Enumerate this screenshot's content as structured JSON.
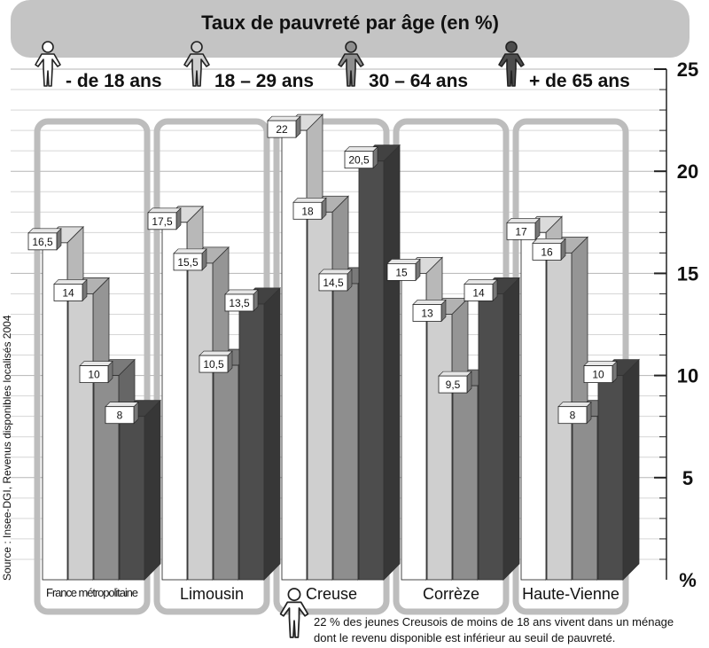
{
  "chart_data": {
    "type": "bar",
    "title": "Taux de pauvreté par âge (en %)",
    "ylim": [
      0,
      25
    ],
    "yticks": [
      5,
      10,
      15,
      20,
      25
    ],
    "yunit": "%",
    "categories": [
      "France métropolitaine",
      "Limousin",
      "Creuse",
      "Corrèze",
      "Haute-Vienne"
    ],
    "series": [
      {
        "name": "- de 18 ans",
        "values": [
          16.5,
          17.5,
          22,
          15,
          17
        ],
        "labels": [
          "16,5",
          "17,5",
          "22",
          "15",
          "17"
        ]
      },
      {
        "name": "18 – 29 ans",
        "values": [
          14,
          15.5,
          18,
          13,
          16
        ],
        "labels": [
          "14",
          "15,5",
          "18",
          "13",
          "16"
        ]
      },
      {
        "name": "30 – 64 ans",
        "values": [
          10,
          10.5,
          14.5,
          9.5,
          8
        ],
        "labels": [
          "10",
          "10,5",
          "14,5",
          "9,5",
          "8"
        ]
      },
      {
        "name": "+ de 65 ans",
        "values": [
          8,
          13.5,
          20.5,
          14,
          10
        ],
        "labels": [
          "8",
          "13,5",
          "20,5",
          "14",
          "10"
        ]
      }
    ],
    "colors": [
      "#ffffff",
      "#cfcfcf",
      "#8e8e8e",
      "#4d4d4d"
    ],
    "grid": true,
    "legend": "top",
    "source": "Source : Insee-DGI, Revenus disponibles localisés 2004",
    "note_lines": [
      "22 % des jeunes Creusois de moins de 18 ans vivent dans un ménage",
      "dont le revenu disponible est inférieur au seuil de pauvreté."
    ]
  }
}
